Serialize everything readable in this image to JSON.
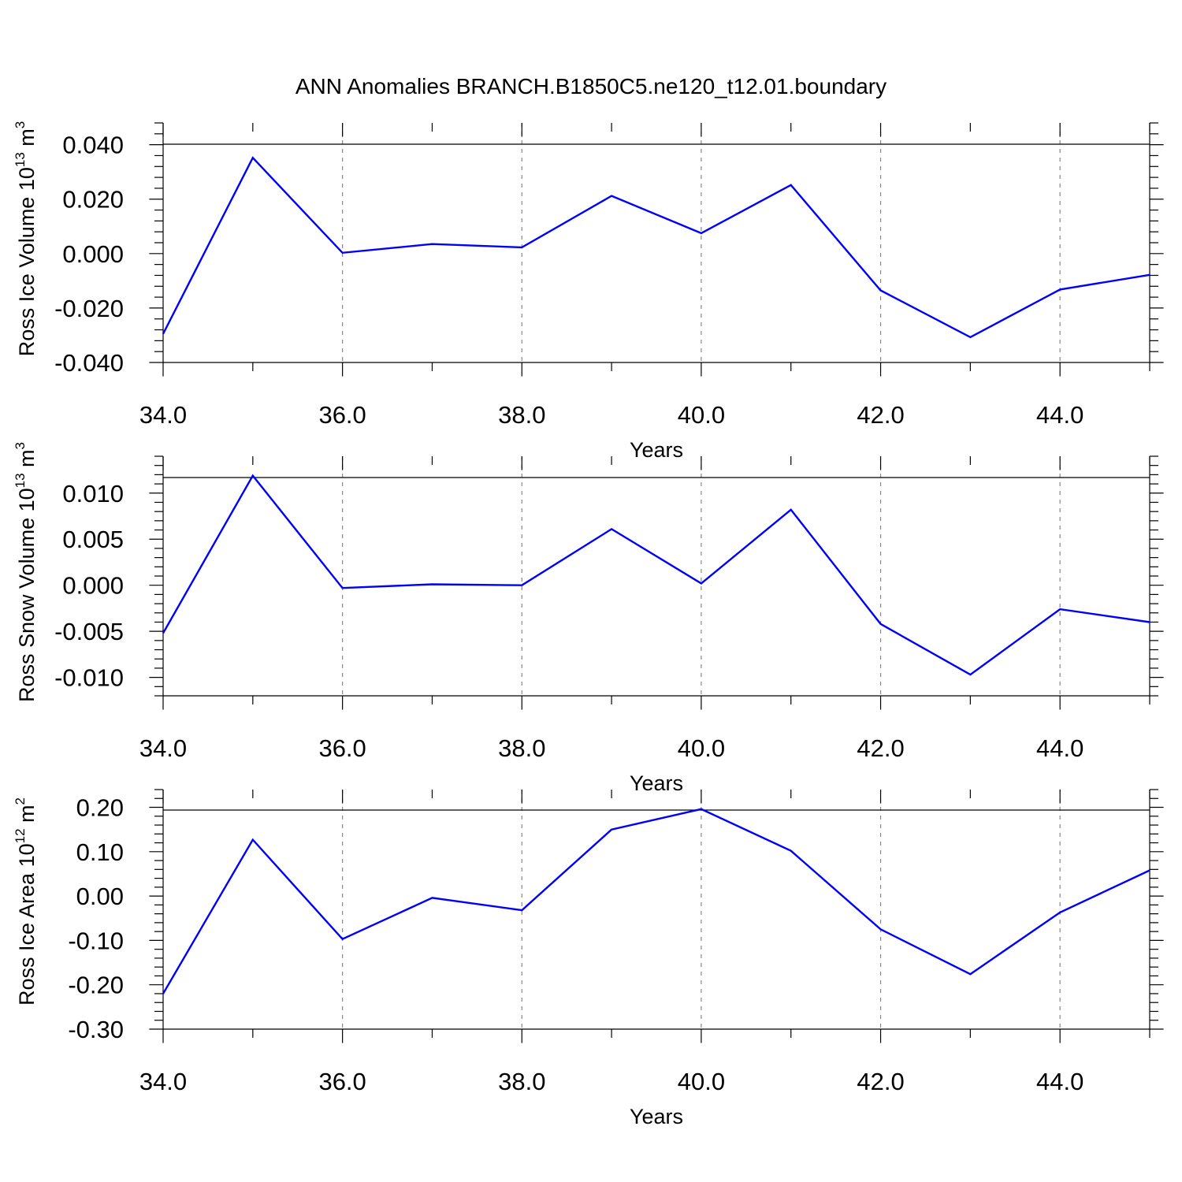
{
  "title": "ANN Anomalies BRANCH.B1850C5.ne120_t12.01.boundary",
  "line_color": "#0000ff",
  "grid": "vertical dashed gridlines at major x ticks",
  "chart_data": [
    {
      "type": "line",
      "ylabel": {
        "text": "Ross Ice Volume 10",
        "exp": "13",
        "unit": " m",
        "unit_exp": "3"
      },
      "xlabel": "Years",
      "x": [
        34,
        35,
        36,
        37,
        38,
        39,
        40,
        41,
        42,
        43,
        44,
        45
      ],
      "series": [
        {
          "values": [
            -0.0295,
            0.0352,
            0.0003,
            0.0035,
            0.0023,
            0.0212,
            0.0075,
            0.0252,
            -0.0135,
            -0.0307,
            -0.0132,
            -0.0078
          ]
        }
      ],
      "xlim": [
        34,
        45
      ],
      "ylim": [
        -0.04,
        0.048
      ],
      "xticks": [
        34,
        36,
        38,
        40,
        42,
        44
      ],
      "xtick_labels": [
        "34.0",
        "36.0",
        "38.0",
        "40.0",
        "42.0",
        "44.0"
      ],
      "yticks": [
        -0.04,
        -0.02,
        0.0,
        0.02,
        0.04
      ],
      "ytick_labels": [
        "-0.040",
        "-0.020",
        "0.000",
        "0.020",
        "0.040"
      ]
    },
    {
      "type": "line",
      "ylabel": {
        "text": "Ross Snow Volume 10",
        "exp": "13",
        "unit": " m",
        "unit_exp": "3"
      },
      "xlabel": "Years",
      "x": [
        34,
        35,
        36,
        37,
        38,
        39,
        40,
        41,
        42,
        43,
        44,
        45
      ],
      "series": [
        {
          "values": [
            -0.0052,
            0.0119,
            -0.0003,
            0.0001,
            0.0,
            0.0061,
            0.0002,
            0.0082,
            -0.0042,
            -0.0097,
            -0.0026,
            -0.004
          ]
        }
      ],
      "xlim": [
        34,
        45
      ],
      "ylim": [
        -0.012,
        0.014
      ],
      "xticks": [
        34,
        36,
        38,
        40,
        42,
        44
      ],
      "xtick_labels": [
        "34.0",
        "36.0",
        "38.0",
        "40.0",
        "42.0",
        "44.0"
      ],
      "yticks": [
        -0.01,
        -0.005,
        0.0,
        0.005,
        0.01
      ],
      "ytick_labels": [
        "-0.010",
        "-0.005",
        "0.000",
        "0.005",
        "0.010"
      ]
    },
    {
      "type": "line",
      "ylabel": {
        "text": "Ross Ice Area 10",
        "exp": "12",
        "unit": " m",
        "unit_exp": "2"
      },
      "xlabel": "Years",
      "x": [
        34,
        35,
        36,
        37,
        38,
        39,
        40,
        41,
        42,
        43,
        44,
        45
      ],
      "series": [
        {
          "values": [
            -0.22,
            0.127,
            -0.097,
            -0.004,
            -0.032,
            0.15,
            0.196,
            0.102,
            -0.075,
            -0.176,
            -0.037,
            0.058
          ]
        }
      ],
      "xlim": [
        34,
        45
      ],
      "ylim": [
        -0.3,
        0.24
      ],
      "xticks": [
        34,
        36,
        38,
        40,
        42,
        44
      ],
      "xtick_labels": [
        "34.0",
        "36.0",
        "38.0",
        "40.0",
        "42.0",
        "44.0"
      ],
      "yticks": [
        -0.3,
        -0.2,
        -0.1,
        0.0,
        0.1,
        0.2
      ],
      "ytick_labels": [
        "-0.30",
        "-0.20",
        "-0.10",
        "0.00",
        "0.10",
        "0.20"
      ]
    }
  ]
}
